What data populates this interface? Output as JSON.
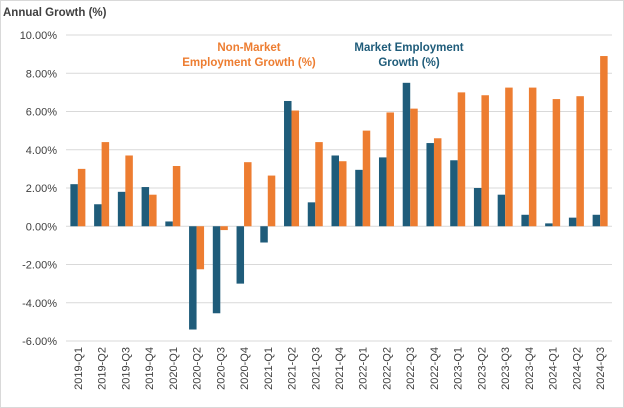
{
  "chart_data": {
    "type": "bar",
    "ylabel": "Annual Growth (%)",
    "ylim": [
      -6,
      10
    ],
    "yticks": [
      -6,
      -4,
      -2,
      0,
      2,
      4,
      6,
      8,
      10
    ],
    "ytick_labels": [
      "-6.00%",
      "-4.00%",
      "-2.00%",
      "0.00%",
      "2.00%",
      "4.00%",
      "6.00%",
      "8.00%",
      "10.00%"
    ],
    "grid": "horizontal",
    "legend": "none (inline annotations)",
    "categories": [
      "2019-Q1",
      "2019-Q2",
      "2019-Q3",
      "2019-Q4",
      "2020-Q1",
      "2020-Q2",
      "2020-Q3",
      "2020-Q4",
      "2021-Q1",
      "2021-Q2",
      "2021-Q3",
      "2021-Q4",
      "2022-Q1",
      "2022-Q2",
      "2022-Q3",
      "2022-Q4",
      "2023-Q1",
      "2023-Q2",
      "2023-Q3",
      "2023-Q4",
      "2024-Q1",
      "2024-Q2",
      "2024-Q3"
    ],
    "series": [
      {
        "name": "Market Employment Growth (%)",
        "color": "#1f5c7a",
        "values": [
          2.2,
          1.15,
          1.8,
          2.05,
          0.25,
          -5.4,
          -4.55,
          -3.0,
          -0.85,
          6.55,
          1.25,
          3.7,
          2.95,
          3.6,
          7.5,
          4.35,
          3.45,
          2.0,
          1.65,
          0.6,
          0.15,
          0.45,
          0.6
        ]
      },
      {
        "name": "Non-Market Employment Growth (%)",
        "color": "#ed7d31",
        "values": [
          3.0,
          4.4,
          3.7,
          1.65,
          3.15,
          -2.25,
          -0.2,
          3.35,
          2.65,
          6.05,
          4.4,
          3.4,
          5.0,
          5.95,
          6.15,
          4.6,
          7.0,
          6.85,
          7.25,
          7.25,
          6.65,
          6.8,
          8.9
        ]
      }
    ],
    "annotations": [
      {
        "lines": [
          "Non-Market",
          "Employment Growth (%)"
        ],
        "color": "#ed7d31"
      },
      {
        "lines": [
          "Market Employment",
          "Growth (%)"
        ],
        "color": "#1f5c7a"
      }
    ]
  }
}
